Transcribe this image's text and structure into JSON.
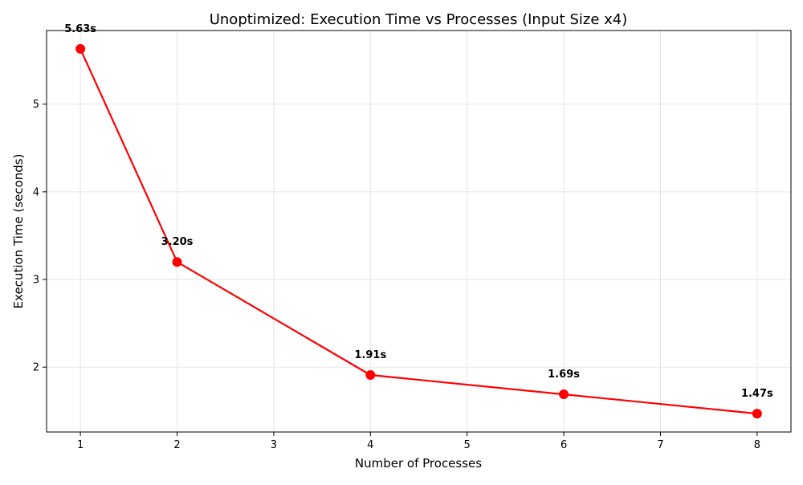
{
  "chart_data": {
    "type": "line",
    "title": "Unoptimized: Execution Time vs Processes (Input Size x4)",
    "xlabel": "Number of Processes",
    "ylabel": "Execution Time (seconds)",
    "xlim": [
      0.65,
      8.35
    ],
    "ylim": [
      1.26,
      5.84
    ],
    "x_ticks": [
      1,
      2,
      3,
      4,
      5,
      6,
      7,
      8
    ],
    "y_ticks": [
      2,
      3,
      4,
      5
    ],
    "grid": true,
    "series": [
      {
        "color": "#ff0000",
        "marker": "circle",
        "points": [
          {
            "x": 1,
            "y": 5.63,
            "label": "5.63s"
          },
          {
            "x": 2,
            "y": 3.2,
            "label": "3.20s"
          },
          {
            "x": 4,
            "y": 1.91,
            "label": "1.91s"
          },
          {
            "x": 6,
            "y": 1.69,
            "label": "1.69s"
          },
          {
            "x": 8,
            "y": 1.47,
            "label": "1.47s"
          }
        ]
      }
    ]
  }
}
